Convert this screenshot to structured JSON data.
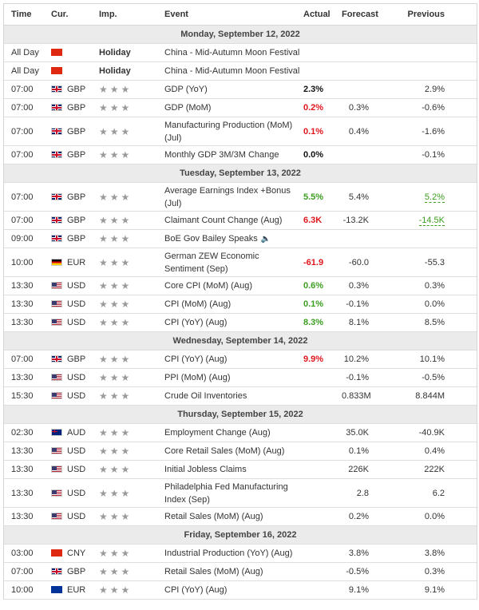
{
  "headers": {
    "time": "Time",
    "cur": "Cur.",
    "imp": "Imp.",
    "event": "Event",
    "actual": "Actual",
    "forecast": "Forecast",
    "previous": "Previous"
  },
  "stars": "★★★",
  "rows": [
    {
      "type": "date",
      "label": "Monday, September 12, 2022"
    },
    {
      "type": "event",
      "time": "All Day",
      "flag": "cn",
      "cur": "",
      "imp": "Holiday",
      "event": "China - Mid-Autumn Moon Festival",
      "actual": "",
      "forecast": "",
      "previous": "",
      "h": 1
    },
    {
      "type": "event",
      "time": "All Day",
      "flag": "cn",
      "cur": "",
      "imp": "Holiday",
      "event": "China - Mid-Autumn Moon Festival",
      "actual": "",
      "forecast": "",
      "previous": "",
      "h": 1
    },
    {
      "type": "event",
      "time": "07:00",
      "flag": "gb",
      "cur": "GBP",
      "event": "GDP (YoY)",
      "actual": "2.3%",
      "actual_color": "black",
      "forecast": "",
      "previous": "2.9%",
      "h": 1
    },
    {
      "type": "event",
      "time": "07:00",
      "flag": "gb",
      "cur": "GBP",
      "event": "GDP (MoM)",
      "actual": "0.2%",
      "actual_color": "red",
      "forecast": "0.3%",
      "previous": "-0.6%",
      "h": 1
    },
    {
      "type": "event",
      "time": "07:00",
      "flag": "gb",
      "cur": "GBP",
      "event": "Manufacturing Production (MoM) (Jul)",
      "actual": "0.1%",
      "actual_color": "red",
      "forecast": "0.4%",
      "previous": "-1.6%",
      "h": 2
    },
    {
      "type": "event",
      "time": "07:00",
      "flag": "gb",
      "cur": "GBP",
      "event": "Monthly GDP 3M/3M Change",
      "actual": "0.0%",
      "actual_color": "black",
      "forecast": "",
      "previous": "-0.1%",
      "h": 1
    },
    {
      "type": "date",
      "label": "Tuesday, September 13, 2022"
    },
    {
      "type": "event",
      "time": "07:00",
      "flag": "gb",
      "cur": "GBP",
      "event": "Average Earnings Index +Bonus (Jul)",
      "actual": "5.5%",
      "actual_color": "green",
      "forecast": "5.4%",
      "previous": "5.2%",
      "previous_color": "green",
      "h": 2
    },
    {
      "type": "event",
      "time": "07:00",
      "flag": "gb",
      "cur": "GBP",
      "event": "Claimant Count Change (Aug)",
      "actual": "6.3K",
      "actual_color": "red",
      "forecast": "-13.2K",
      "previous": "-14.5K",
      "previous_color": "green",
      "h": 1
    },
    {
      "type": "event",
      "time": "09:00",
      "flag": "gb",
      "cur": "GBP",
      "event": "BoE Gov Bailey Speaks",
      "speaker": true,
      "actual": "",
      "forecast": "",
      "previous": "",
      "h": 1
    },
    {
      "type": "event",
      "time": "10:00",
      "flag": "de",
      "cur": "EUR",
      "event": "German ZEW Economic Sentiment (Sep)",
      "actual": "-61.9",
      "actual_color": "red",
      "forecast": "-60.0",
      "previous": "-55.3",
      "h": 2
    },
    {
      "type": "event",
      "time": "13:30",
      "flag": "us",
      "cur": "USD",
      "event": "Core CPI (MoM) (Aug)",
      "actual": "0.6%",
      "actual_color": "green",
      "forecast": "0.3%",
      "previous": "0.3%",
      "h": 1
    },
    {
      "type": "event",
      "time": "13:30",
      "flag": "us",
      "cur": "USD",
      "event": "CPI (MoM) (Aug)",
      "actual": "0.1%",
      "actual_color": "green",
      "forecast": "-0.1%",
      "previous": "0.0%",
      "h": 1
    },
    {
      "type": "event",
      "time": "13:30",
      "flag": "us",
      "cur": "USD",
      "event": "CPI (YoY) (Aug)",
      "actual": "8.3%",
      "actual_color": "green",
      "forecast": "8.1%",
      "previous": "8.5%",
      "h": 1
    },
    {
      "type": "date",
      "label": "Wednesday, September 14, 2022"
    },
    {
      "type": "event",
      "time": "07:00",
      "flag": "gb",
      "cur": "GBP",
      "event": "CPI (YoY) (Aug)",
      "actual": "9.9%",
      "actual_color": "red",
      "forecast": "10.2%",
      "previous": "10.1%",
      "h": 1
    },
    {
      "type": "event",
      "time": "13:30",
      "flag": "us",
      "cur": "USD",
      "event": "PPI (MoM) (Aug)",
      "actual": "",
      "forecast": "-0.1%",
      "previous": "-0.5%",
      "h": 1
    },
    {
      "type": "event",
      "time": "15:30",
      "flag": "us",
      "cur": "USD",
      "event": "Crude Oil Inventories",
      "actual": "",
      "forecast": "0.833M",
      "previous": "8.844M",
      "h": 1
    },
    {
      "type": "date",
      "label": "Thursday, September 15, 2022"
    },
    {
      "type": "event",
      "time": "02:30",
      "flag": "au",
      "cur": "AUD",
      "event": "Employment Change (Aug)",
      "actual": "",
      "forecast": "35.0K",
      "previous": "-40.9K",
      "h": 1
    },
    {
      "type": "event",
      "time": "13:30",
      "flag": "us",
      "cur": "USD",
      "event": "Core Retail Sales (MoM) (Aug)",
      "actual": "",
      "forecast": "0.1%",
      "previous": "0.4%",
      "h": 1
    },
    {
      "type": "event",
      "time": "13:30",
      "flag": "us",
      "cur": "USD",
      "event": "Initial Jobless Claims",
      "actual": "",
      "forecast": "226K",
      "previous": "222K",
      "h": 1
    },
    {
      "type": "event",
      "time": "13:30",
      "flag": "us",
      "cur": "USD",
      "event": "Philadelphia Fed Manufacturing Index (Sep)",
      "actual": "",
      "forecast": "2.8",
      "previous": "6.2",
      "h": 2
    },
    {
      "type": "event",
      "time": "13:30",
      "flag": "us",
      "cur": "USD",
      "event": "Retail Sales (MoM) (Aug)",
      "actual": "",
      "forecast": "0.2%",
      "previous": "0.0%",
      "h": 1
    },
    {
      "type": "date",
      "label": "Friday, September 16, 2022"
    },
    {
      "type": "event",
      "time": "03:00",
      "flag": "cn",
      "cur": "CNY",
      "event": "Industrial Production (YoY) (Aug)",
      "actual": "",
      "forecast": "3.8%",
      "previous": "3.8%",
      "h": 1
    },
    {
      "type": "event",
      "time": "07:00",
      "flag": "gb",
      "cur": "GBP",
      "event": "Retail Sales (MoM) (Aug)",
      "actual": "",
      "forecast": "-0.5%",
      "previous": "0.3%",
      "h": 1
    },
    {
      "type": "event",
      "time": "10:00",
      "flag": "eu",
      "cur": "EUR",
      "event": "CPI (YoY) (Aug)",
      "actual": "",
      "forecast": "9.1%",
      "previous": "9.1%",
      "h": 1
    }
  ]
}
